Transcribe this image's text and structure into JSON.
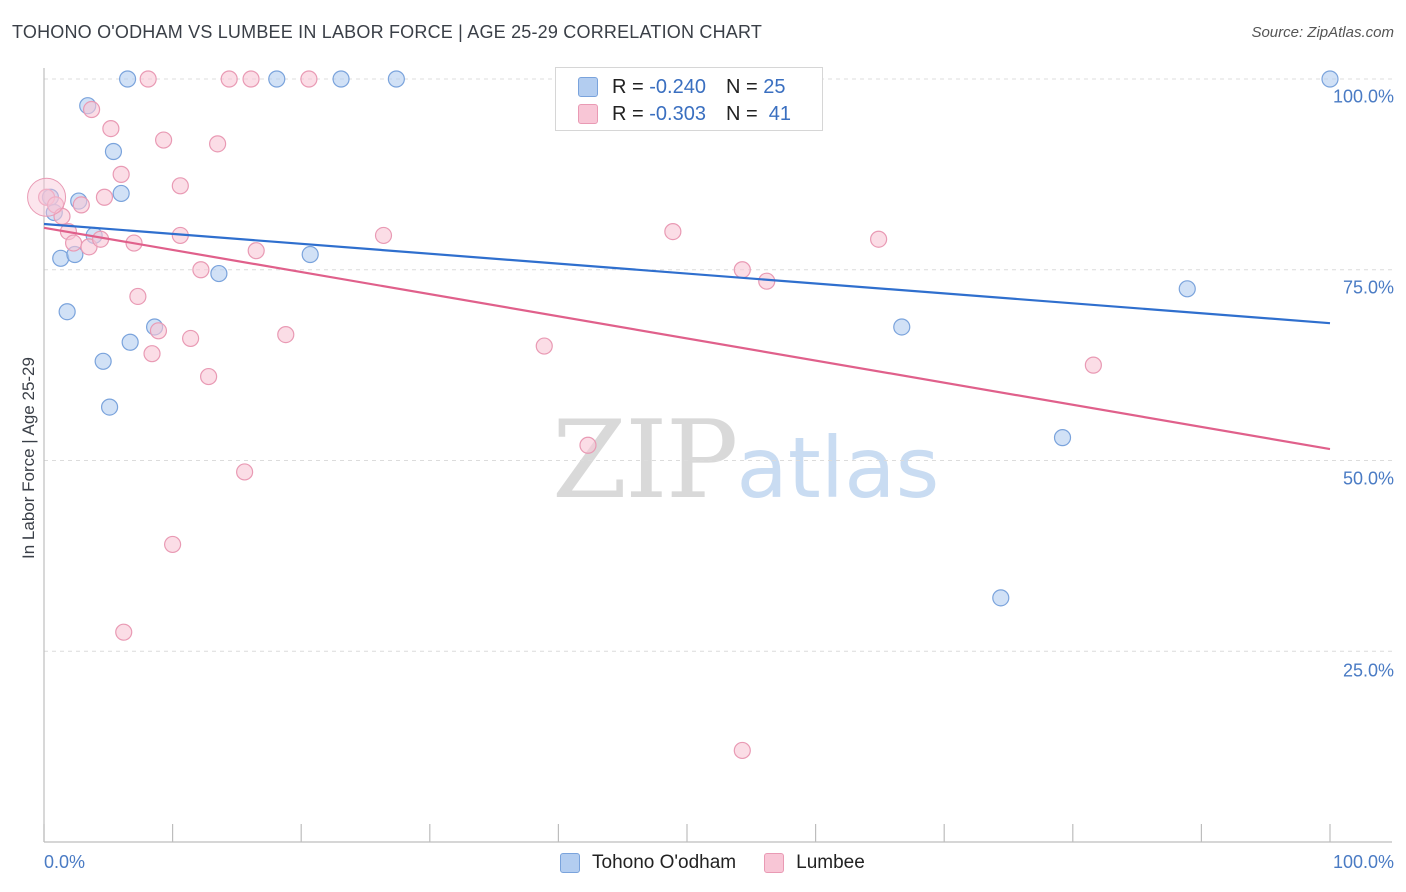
{
  "header": {
    "title": "TOHONO O'ODHAM VS LUMBEE IN LABOR FORCE | AGE 25-29 CORRELATION CHART",
    "source": "Source: ZipAtlas.com"
  },
  "watermark": {
    "zip": "ZIP",
    "atlas": "atlas"
  },
  "legend": {
    "rows": [
      {
        "r_label": "R =",
        "r_value": "-0.240",
        "n_label": "N =",
        "n_value": "25"
      },
      {
        "r_label": "R =",
        "r_value": "-0.303",
        "n_label": "N =",
        "n_value": "41"
      }
    ]
  },
  "colors": {
    "blue_fill": "#b3cdf0",
    "blue_stroke": "#7aa3dc",
    "blue_line": "#2f6fce",
    "pink_fill": "#f8c6d6",
    "pink_stroke": "#e99ab4",
    "pink_line": "#e0608b",
    "grid": "#dcdcdc",
    "axis_text": "#4a7bc4"
  },
  "chart_data": {
    "type": "scatter",
    "title": "TOHONO O'ODHAM VS LUMBEE IN LABOR FORCE | AGE 25-29 CORRELATION CHART",
    "xlabel": "",
    "ylabel": "In Labor Force | Age 25-29",
    "xlim": [
      0,
      100
    ],
    "ylim": [
      0,
      101
    ],
    "x_tick_labels": [
      "0.0%",
      "100.0%"
    ],
    "y_ticks": [
      25,
      50,
      75,
      100
    ],
    "y_tick_labels": [
      "25.0%",
      "50.0%",
      "75.0%",
      "100.0%"
    ],
    "grid": true,
    "legend_position": "top-center",
    "series": [
      {
        "name": "Tohono O'odham",
        "color": "blue",
        "points": [
          [
            0.5,
            84.5
          ],
          [
            0.8,
            82.5
          ],
          [
            3.4,
            96.5
          ],
          [
            6.5,
            100
          ],
          [
            5.4,
            90.5
          ],
          [
            6.0,
            85.0
          ],
          [
            2.7,
            84.0
          ],
          [
            3.9,
            79.5
          ],
          [
            18.1,
            100
          ],
          [
            23.1,
            100
          ],
          [
            27.4,
            100
          ],
          [
            100,
            100
          ],
          [
            1.3,
            76.5
          ],
          [
            2.4,
            77.0
          ],
          [
            20.7,
            77.0
          ],
          [
            13.6,
            74.5
          ],
          [
            1.8,
            69.5
          ],
          [
            8.6,
            67.5
          ],
          [
            6.7,
            65.5
          ],
          [
            4.6,
            63.0
          ],
          [
            5.1,
            57.0
          ],
          [
            66.7,
            67.5
          ],
          [
            88.9,
            72.5
          ],
          [
            79.2,
            53.0
          ],
          [
            74.4,
            32.0
          ]
        ],
        "trend": {
          "x": [
            0,
            100
          ],
          "y": [
            81.0,
            68.0
          ]
        }
      },
      {
        "name": "Lumbee",
        "color": "pink",
        "points": [
          [
            0.2,
            84.5
          ],
          [
            0.9,
            83.5
          ],
          [
            1.4,
            82.0
          ],
          [
            1.9,
            80.0
          ],
          [
            2.3,
            78.5
          ],
          [
            3.5,
            78.0
          ],
          [
            4.4,
            79.0
          ],
          [
            3.7,
            96.0
          ],
          [
            5.2,
            93.5
          ],
          [
            6.0,
            87.5
          ],
          [
            7.0,
            78.5
          ],
          [
            4.7,
            84.5
          ],
          [
            2.9,
            83.5
          ],
          [
            8.1,
            100
          ],
          [
            14.4,
            100
          ],
          [
            16.1,
            100
          ],
          [
            20.6,
            100
          ],
          [
            9.3,
            92.0
          ],
          [
            13.5,
            91.5
          ],
          [
            10.6,
            86.0
          ],
          [
            10.6,
            79.5
          ],
          [
            16.5,
            77.5
          ],
          [
            26.4,
            79.5
          ],
          [
            12.2,
            75.0
          ],
          [
            7.3,
            71.5
          ],
          [
            8.9,
            67.0
          ],
          [
            11.4,
            66.0
          ],
          [
            18.8,
            66.5
          ],
          [
            8.4,
            64.0
          ],
          [
            12.8,
            61.0
          ],
          [
            38.9,
            65.0
          ],
          [
            48.9,
            80.0
          ],
          [
            54.3,
            75.0
          ],
          [
            56.2,
            73.5
          ],
          [
            64.9,
            79.0
          ],
          [
            81.6,
            62.5
          ],
          [
            42.3,
            52.0
          ],
          [
            15.6,
            48.5
          ],
          [
            10.0,
            39.0
          ],
          [
            6.2,
            27.5
          ],
          [
            54.3,
            12.0
          ]
        ],
        "trend": {
          "x": [
            0,
            100
          ],
          "y": [
            80.5,
            51.5
          ]
        }
      }
    ]
  },
  "bottom_legend": {
    "items": [
      "Tohono O'odham",
      "Lumbee"
    ]
  }
}
